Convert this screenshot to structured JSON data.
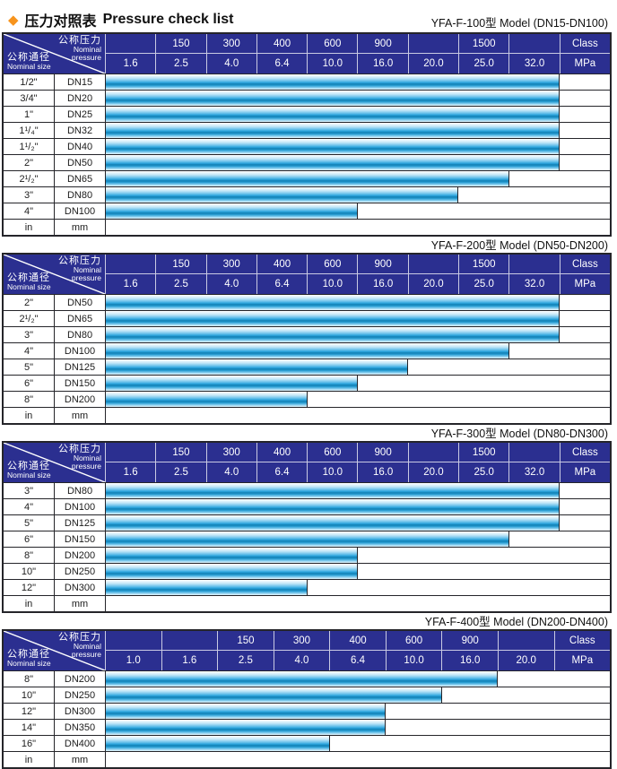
{
  "page_title": {
    "diamond_icon": "diamond-bullet",
    "zh": "压力对照表",
    "en": "Pressure check list"
  },
  "colors": {
    "header_navy": "#2b2f90",
    "bar_cyan": "#2da5de",
    "bar_dark_band": "#1180b4",
    "diamond_orange": "#f7941d",
    "border": "#25252a"
  },
  "diagonal_header": {
    "pressure_zh": "公称压力",
    "pressure_en_line1": "Nominal",
    "pressure_en_line2": "pressure",
    "size_zh": "公称通径",
    "size_en": "Nominal size"
  },
  "tables": [
    {
      "title": "YFA-F-100型  Model (DN15-DN100)",
      "class_row": [
        "",
        "150",
        "300",
        "400",
        "600",
        "900",
        "",
        "1500",
        "",
        "Class"
      ],
      "mpa_row": [
        "1.6",
        "2.5",
        "4.0",
        "6.4",
        "10.0",
        "16.0",
        "20.0",
        "25.0",
        "32.0",
        "MPa"
      ],
      "rows": [
        {
          "size": "1/2\"",
          "dn": "DN15",
          "bar_cols": 9
        },
        {
          "size": "3/4\"",
          "dn": "DN20",
          "bar_cols": 9
        },
        {
          "size": "1\"",
          "dn": "DN25",
          "bar_cols": 9
        },
        {
          "size": "1¹/₄\"",
          "dn": "DN32",
          "bar_cols": 9
        },
        {
          "size": "1¹/₂\"",
          "dn": "DN40",
          "bar_cols": 9
        },
        {
          "size": "2\"",
          "dn": "DN50",
          "bar_cols": 9
        },
        {
          "size": "2¹/₂\"",
          "dn": "DN65",
          "bar_cols": 8
        },
        {
          "size": "3\"",
          "dn": "DN80",
          "bar_cols": 7
        },
        {
          "size": "4\"",
          "dn": "DN100",
          "bar_cols": 5
        },
        {
          "size": "in",
          "dn": "mm",
          "bar_cols": 0
        }
      ]
    },
    {
      "title": "YFA-F-200型  Model (DN50-DN200)",
      "class_row": [
        "",
        "150",
        "300",
        "400",
        "600",
        "900",
        "",
        "1500",
        "",
        "Class"
      ],
      "mpa_row": [
        "1.6",
        "2.5",
        "4.0",
        "6.4",
        "10.0",
        "16.0",
        "20.0",
        "25.0",
        "32.0",
        "MPa"
      ],
      "rows": [
        {
          "size": "2\"",
          "dn": "DN50",
          "bar_cols": 9
        },
        {
          "size": "2¹/₂\"",
          "dn": "DN65",
          "bar_cols": 9
        },
        {
          "size": "3\"",
          "dn": "DN80",
          "bar_cols": 9
        },
        {
          "size": "4\"",
          "dn": "DN100",
          "bar_cols": 8
        },
        {
          "size": "5\"",
          "dn": "DN125",
          "bar_cols": 6
        },
        {
          "size": "6\"",
          "dn": "DN150",
          "bar_cols": 5
        },
        {
          "size": "8\"",
          "dn": "DN200",
          "bar_cols": 4
        },
        {
          "size": "in",
          "dn": "mm",
          "bar_cols": 0
        }
      ]
    },
    {
      "title": "YFA-F-300型  Model (DN80-DN300)",
      "class_row": [
        "",
        "150",
        "300",
        "400",
        "600",
        "900",
        "",
        "1500",
        "",
        "Class"
      ],
      "mpa_row": [
        "1.6",
        "2.5",
        "4.0",
        "6.4",
        "10.0",
        "16.0",
        "20.0",
        "25.0",
        "32.0",
        "MPa"
      ],
      "rows": [
        {
          "size": "3\"",
          "dn": "DN80",
          "bar_cols": 9
        },
        {
          "size": "4\"",
          "dn": "DN100",
          "bar_cols": 9
        },
        {
          "size": "5\"",
          "dn": "DN125",
          "bar_cols": 9
        },
        {
          "size": "6\"",
          "dn": "DN150",
          "bar_cols": 8
        },
        {
          "size": "8\"",
          "dn": "DN200",
          "bar_cols": 5
        },
        {
          "size": "10\"",
          "dn": "DN250",
          "bar_cols": 5
        },
        {
          "size": "12\"",
          "dn": "DN300",
          "bar_cols": 4
        },
        {
          "size": "in",
          "dn": "mm",
          "bar_cols": 0
        }
      ]
    },
    {
      "title": "YFA-F-400型  Model (DN200-DN400)",
      "class_row": [
        "",
        "",
        "150",
        "300",
        "400",
        "600",
        "900",
        "",
        "Class"
      ],
      "mpa_row": [
        "1.0",
        "1.6",
        "2.5",
        "4.0",
        "6.4",
        "10.0",
        "16.0",
        "20.0",
        "MPa"
      ],
      "rows": [
        {
          "size": "8\"",
          "dn": "DN200",
          "bar_cols": 7
        },
        {
          "size": "10\"",
          "dn": "DN250",
          "bar_cols": 6
        },
        {
          "size": "12\"",
          "dn": "DN300",
          "bar_cols": 5
        },
        {
          "size": "14\"",
          "dn": "DN350",
          "bar_cols": 5
        },
        {
          "size": "16\"",
          "dn": "DN400",
          "bar_cols": 4
        },
        {
          "size": "in",
          "dn": "mm",
          "bar_cols": 0
        }
      ]
    }
  ]
}
